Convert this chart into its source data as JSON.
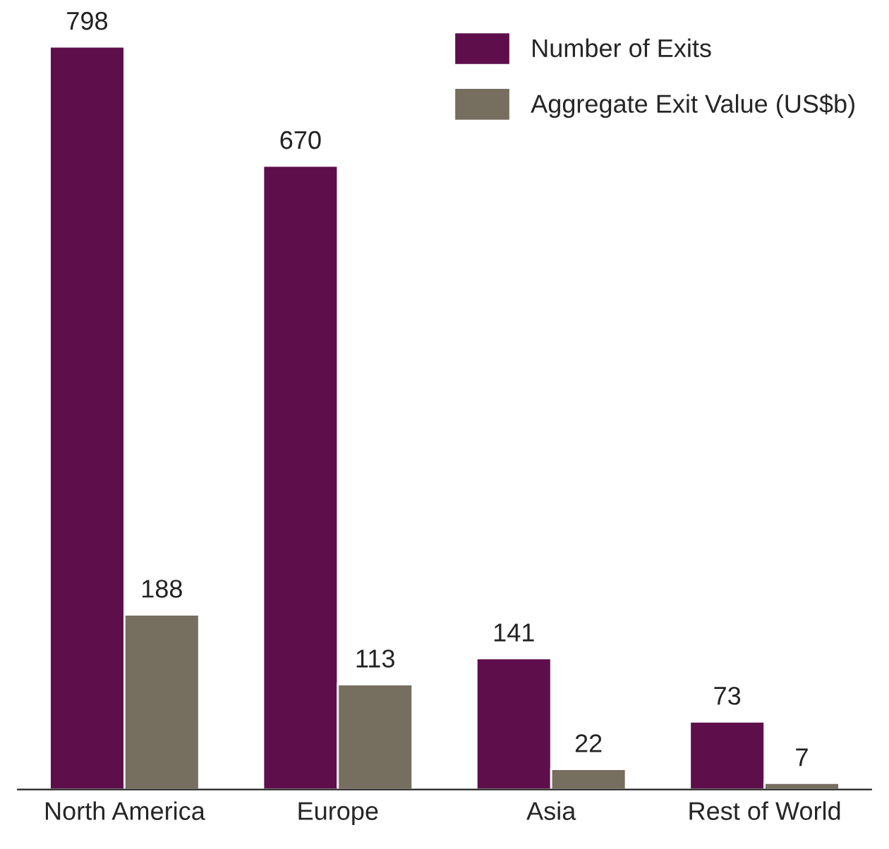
{
  "chart_data": {
    "type": "bar",
    "categories": [
      "North America",
      "Europe",
      "Asia",
      "Rest of World"
    ],
    "series": [
      {
        "name": "Number of Exits",
        "color": "#5e0f4b",
        "values": [
          798,
          670,
          141,
          73
        ]
      },
      {
        "name": "Aggregate Exit Value (US$b)",
        "color": "#766e5f",
        "values": [
          188,
          113,
          22,
          7
        ]
      }
    ],
    "data_labels": true,
    "legend": "top right",
    "grid": false
  }
}
